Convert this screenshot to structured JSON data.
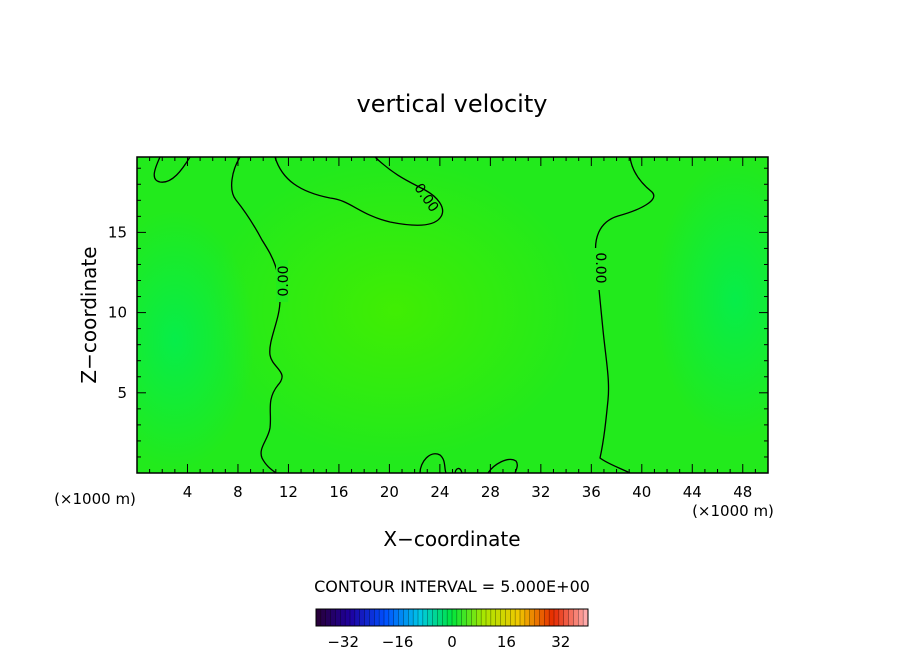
{
  "chart_data": {
    "type": "heatmap",
    "title": "vertical velocity",
    "xlabel": "X−coordinate",
    "ylabel": "Z−coordinate",
    "x_unit_left": "(×1000 m)",
    "x_unit_right": "(×1000 m)",
    "xlim": [
      0,
      50
    ],
    "ylim": [
      0,
      19.7
    ],
    "x_ticks": [
      4,
      8,
      12,
      16,
      20,
      24,
      28,
      32,
      36,
      40,
      44,
      48
    ],
    "x_tick_labels": [
      "4",
      "8",
      "12",
      "16",
      "20",
      "24",
      "28",
      "32",
      "36",
      "40",
      "44",
      "48"
    ],
    "y_ticks": [
      5,
      10,
      15
    ],
    "y_tick_labels": [
      "5",
      "10",
      "15"
    ],
    "contour_label": "0.00",
    "contour_interval_text": "CONTOUR INTERVAL = 5.000E+00",
    "colorbar": {
      "range": [
        -40,
        40
      ],
      "ticks": [
        -32,
        -16,
        0,
        16,
        32
      ],
      "tick_labels": [
        "−32",
        "−16",
        "0",
        "16",
        "32"
      ]
    },
    "field_description": {
      "background_value": 0,
      "updraft_center": {
        "x": 21,
        "z": 10,
        "value": 3
      },
      "downdraft_left": {
        "x": 2,
        "z": 8,
        "value": -2
      },
      "downdraft_right": {
        "x": 48,
        "z": 11,
        "value": -2
      }
    },
    "grid": false,
    "legend": "none"
  }
}
